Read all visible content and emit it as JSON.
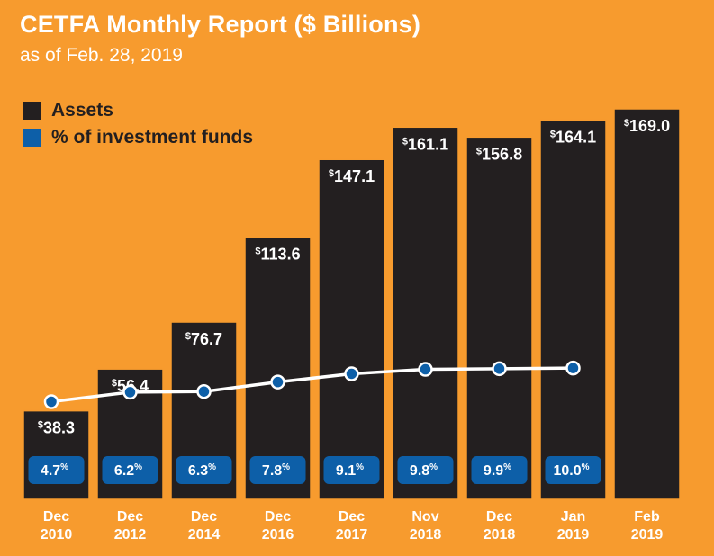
{
  "title": "CETFA Monthly Report ($ Billions)",
  "subtitle": "as of Feb. 28, 2019",
  "colors": {
    "background": "#F79B2E",
    "assets": "#231F20",
    "percent": "#0D5FA8",
    "line": "#FFFFFF",
    "text_light": "#FFFFFF"
  },
  "chart_data": {
    "type": "bar",
    "title": "CETFA Monthly Report ($ Billions)",
    "subtitle": "as of Feb. 28, 2019",
    "categories": [
      "Dec 2010",
      "Dec 2012",
      "Dec 2014",
      "Dec 2016",
      "Dec 2017",
      "Nov 2018",
      "Dec 2018",
      "Jan 2019",
      "Feb 2019"
    ],
    "category_lines": [
      [
        "Dec",
        "2010"
      ],
      [
        "Dec",
        "2012"
      ],
      [
        "Dec",
        "2014"
      ],
      [
        "Dec",
        "2016"
      ],
      [
        "Dec",
        "2017"
      ],
      [
        "Nov",
        "2018"
      ],
      [
        "Dec",
        "2018"
      ],
      [
        "Jan",
        "2019"
      ],
      [
        "Feb",
        "2019"
      ]
    ],
    "series": [
      {
        "name": "Assets",
        "type": "bar",
        "values": [
          38.3,
          56.4,
          76.7,
          113.6,
          147.1,
          161.1,
          156.8,
          164.1,
          169.0
        ],
        "labels": [
          "38.3",
          "56.4",
          "76.7",
          "113.6",
          "147.1",
          "161.1",
          "156.8",
          "164.1",
          "169.0"
        ],
        "label_prefix": "$"
      },
      {
        "name": "% of investment funds",
        "type": "line",
        "values": [
          4.7,
          6.2,
          6.3,
          7.8,
          9.1,
          9.8,
          9.9,
          10.0,
          null
        ],
        "labels": [
          "4.7",
          "6.2",
          "6.3",
          "7.8",
          "9.1",
          "9.8",
          "9.9",
          "10.0",
          ""
        ],
        "label_suffix": "%"
      }
    ],
    "legend": {
      "position": "top-left",
      "entries": [
        "Assets",
        "% of investment funds"
      ]
    },
    "ylim": [
      0,
      175
    ],
    "grid": false
  }
}
